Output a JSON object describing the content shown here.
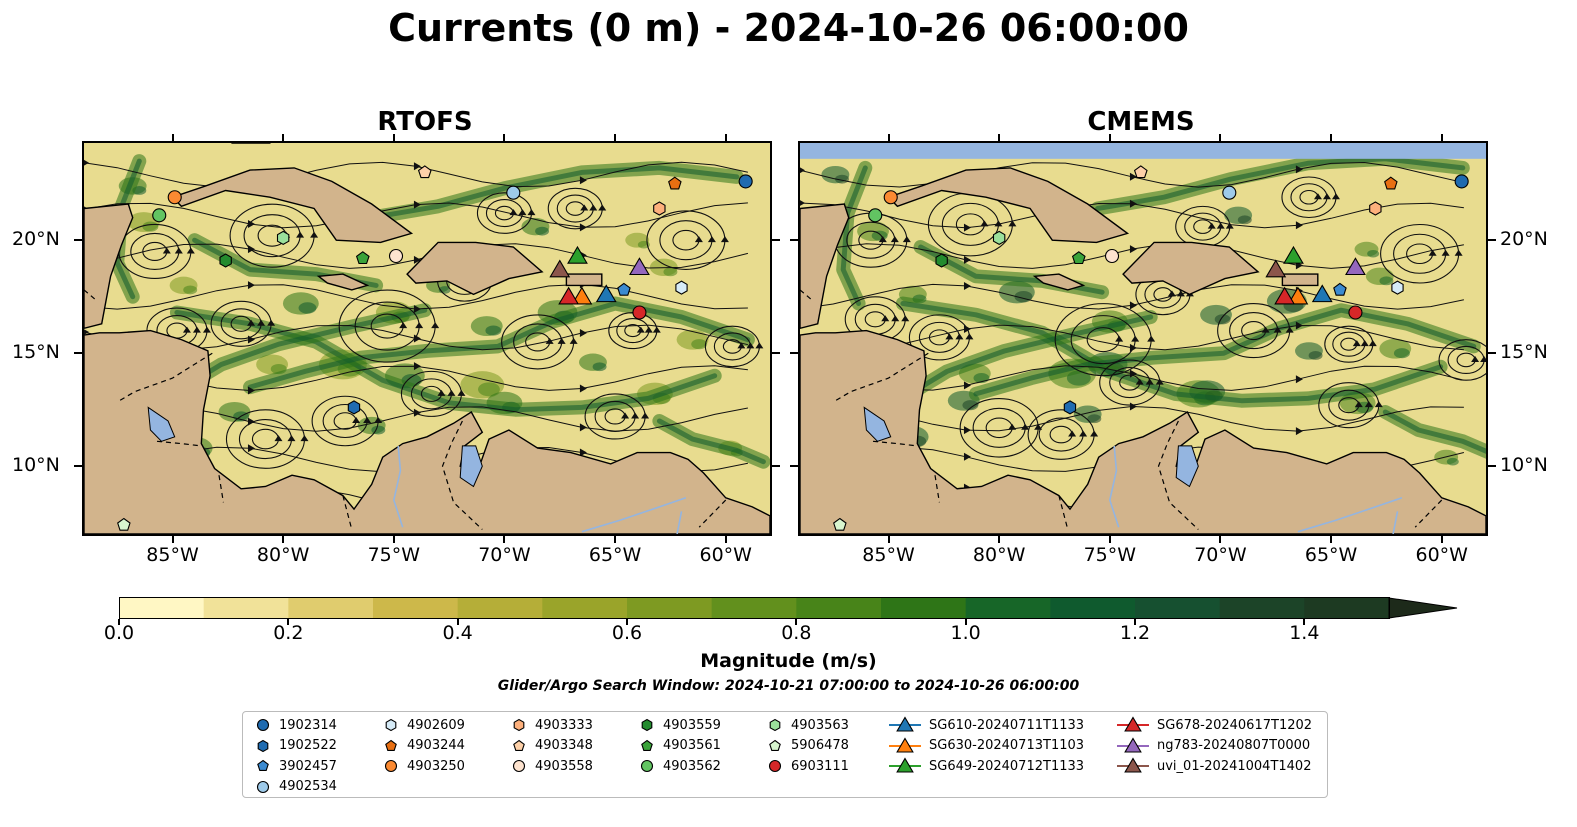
{
  "title": "Currents (0 m) - 2024-10-26 06:00:00",
  "panels": [
    {
      "id": "rtofs",
      "title": "RTOFS"
    },
    {
      "id": "cmems",
      "title": "CMEMS"
    }
  ],
  "axes": {
    "lon_ticks": [
      "85°W",
      "80°W",
      "75°W",
      "70°W",
      "65°W",
      "60°W"
    ],
    "lat_ticks": [
      "20°N",
      "15°N",
      "10°N"
    ],
    "lon_range": [
      -89,
      -58
    ],
    "lat_range": [
      7,
      24.3
    ]
  },
  "colorbar": {
    "label": "Magnitude (m/s)",
    "ticks": [
      "0.0",
      "0.2",
      "0.4",
      "0.6",
      "0.8",
      "1.0",
      "1.2",
      "1.4"
    ],
    "range": [
      0,
      1.5
    ],
    "extend": "max",
    "colors": [
      "#fff7c4",
      "#f1e299",
      "#e0cc6e",
      "#cdb84a",
      "#b5ae38",
      "#9aa42a",
      "#7e9a22",
      "#62901d",
      "#488419",
      "#2e7517",
      "#176628",
      "#0f5a2e",
      "#165030",
      "#1c4428",
      "#1d3a22"
    ]
  },
  "search_window": "Glider/Argo Search Window: 2024-10-21 07:00:00 to 2024-10-26 06:00:00",
  "colors": {
    "land": "#d2b48c",
    "water_body": "#94b5e0",
    "ocean_low": "#e8dc8f"
  },
  "legend": [
    {
      "label": "1902314",
      "marker": "circle",
      "color": "#1f6bb0"
    },
    {
      "label": "1902522",
      "marker": "hexagon",
      "color": "#1f6bb0"
    },
    {
      "label": "3902457",
      "marker": "pentagon",
      "color": "#3b8ad0"
    },
    {
      "label": "4902534",
      "marker": "circle",
      "color": "#9ecae9"
    },
    {
      "label": "4902609",
      "marker": "hexagon",
      "color": "#d6ebf7"
    },
    {
      "label": "4903244",
      "marker": "pentagon",
      "color": "#e86f12"
    },
    {
      "label": "4903250",
      "marker": "circle",
      "color": "#fb8a32"
    },
    {
      "label": "4903333",
      "marker": "hexagon",
      "color": "#fdb07c"
    },
    {
      "label": "4903348",
      "marker": "pentagon",
      "color": "#fdd0a8"
    },
    {
      "label": "4903558",
      "marker": "circle",
      "color": "#fde3cf"
    },
    {
      "label": "4903559",
      "marker": "hexagon",
      "color": "#238b2e"
    },
    {
      "label": "4903561",
      "marker": "pentagon",
      "color": "#3aa33a"
    },
    {
      "label": "4903562",
      "marker": "circle",
      "color": "#62c462"
    },
    {
      "label": "4903563",
      "marker": "hexagon",
      "color": "#9be09b"
    },
    {
      "label": "5906478",
      "marker": "pentagon",
      "color": "#d8f6cf"
    },
    {
      "label": "6903111",
      "marker": "circle",
      "color": "#d62728"
    },
    {
      "label": "SG610-20240711T1133",
      "marker": "triangle",
      "color": "#1f77b4"
    },
    {
      "label": "SG630-20240713T1103",
      "marker": "triangle",
      "color": "#ff7f0e"
    },
    {
      "label": "SG649-20240712T1133",
      "marker": "triangle",
      "color": "#2ca02c"
    },
    {
      "label": "SG678-20240617T1202",
      "marker": "triangle",
      "color": "#d62728"
    },
    {
      "label": "ng783-20240807T0000",
      "marker": "triangle",
      "color": "#9467bd"
    },
    {
      "label": "uvi_01-20241004T1402",
      "marker": "triangle",
      "color": "#8c564b"
    }
  ],
  "platforms": [
    {
      "id": "1902314",
      "lon": -59.1,
      "lat": 22.6
    },
    {
      "id": "1902522",
      "lon": -76.8,
      "lat": 12.6
    },
    {
      "id": "3902457",
      "lon": -64.6,
      "lat": 17.8
    },
    {
      "id": "4902534",
      "lon": -69.6,
      "lat": 22.1
    },
    {
      "id": "4902609",
      "lon": -62.0,
      "lat": 17.9
    },
    {
      "id": "4903244",
      "lon": -62.3,
      "lat": 22.5
    },
    {
      "id": "4903250",
      "lon": -84.9,
      "lat": 21.9
    },
    {
      "id": "4903333",
      "lon": -63.0,
      "lat": 21.4
    },
    {
      "id": "4903348",
      "lon": -73.6,
      "lat": 23.0
    },
    {
      "id": "4903558",
      "lon": -74.9,
      "lat": 19.3
    },
    {
      "id": "4903559",
      "lon": -82.6,
      "lat": 19.1
    },
    {
      "id": "4903561",
      "lon": -76.4,
      "lat": 19.2
    },
    {
      "id": "4903562",
      "lon": -85.6,
      "lat": 21.1
    },
    {
      "id": "4903563",
      "lon": -80.0,
      "lat": 20.1
    },
    {
      "id": "5906478",
      "lon": -87.2,
      "lat": 7.4
    },
    {
      "id": "6903111",
      "lon": -63.9,
      "lat": 16.8
    },
    {
      "id": "SG610-20240711T1133",
      "lon": -65.4,
      "lat": 17.6
    },
    {
      "id": "SG630-20240713T1103",
      "lon": -66.5,
      "lat": 17.5
    },
    {
      "id": "SG649-20240712T1133",
      "lon": -66.7,
      "lat": 19.3
    },
    {
      "id": "SG678-20240617T1202",
      "lon": -67.1,
      "lat": 17.5
    },
    {
      "id": "ng783-20240807T0000",
      "lon": -63.9,
      "lat": 18.8
    },
    {
      "id": "uvi_01-20241004T1402",
      "lon": -67.5,
      "lat": 18.7
    }
  ]
}
